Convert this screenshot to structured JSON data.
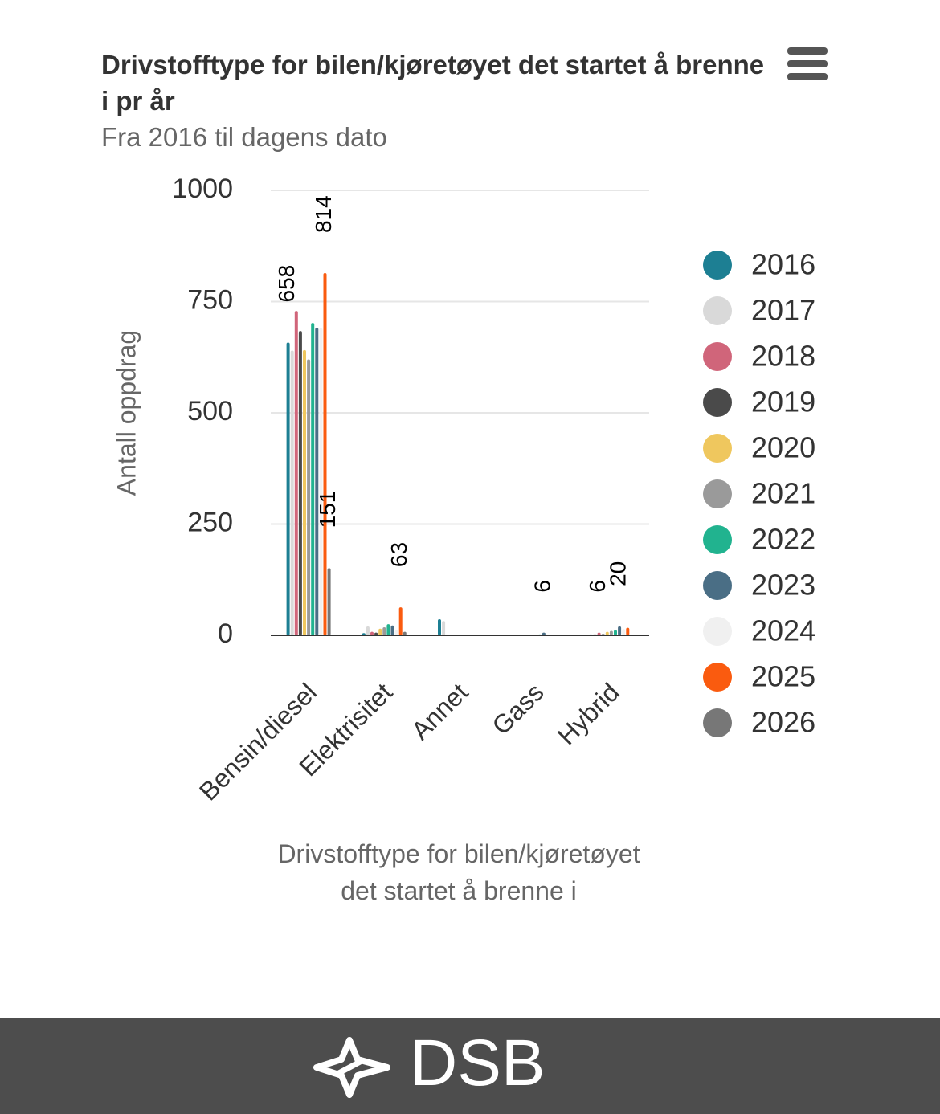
{
  "chart_data": {
    "type": "bar",
    "title": "Drivstofftype for bilen/kjøretøyet det startet å brenne i pr år",
    "subtitle": "Fra 2016 til dagens dato",
    "y_label": "Antall oppdrag",
    "x_label": "Drivstofftype for bilen/kjøretøyet det startet å brenne i",
    "categories": [
      "Bensin/diesel",
      "Elektrisitet",
      "Annet",
      "Gass",
      "Hybrid"
    ],
    "ylim": [
      0,
      1000
    ],
    "yticks": [
      0,
      250,
      500,
      750,
      1000
    ],
    "grid": true,
    "legend": "right",
    "series": [
      {
        "name": "2016",
        "color": "#1d7f93",
        "values": [
          658,
          5,
          36,
          0,
          2
        ],
        "value_labels": [
          "658",
          null,
          null,
          null,
          null
        ]
      },
      {
        "name": "2017",
        "color": "#d9d9d9",
        "values": [
          640,
          20,
          32,
          0,
          3
        ],
        "value_labels": [
          null,
          null,
          null,
          null,
          null
        ]
      },
      {
        "name": "2018",
        "color": "#d0657a",
        "values": [
          729,
          8,
          0,
          0,
          6
        ],
        "value_labels": [
          null,
          null,
          null,
          null,
          "6"
        ]
      },
      {
        "name": "2019",
        "color": "#4a4a4a",
        "values": [
          684,
          6,
          0,
          0,
          3
        ],
        "value_labels": [
          null,
          null,
          null,
          null,
          null
        ]
      },
      {
        "name": "2020",
        "color": "#efc75e",
        "values": [
          641,
          15,
          0,
          0,
          8
        ],
        "value_labels": [
          null,
          null,
          null,
          null,
          null
        ]
      },
      {
        "name": "2021",
        "color": "#9a9a9a",
        "values": [
          620,
          18,
          0,
          0,
          10
        ],
        "value_labels": [
          null,
          null,
          null,
          null,
          null
        ]
      },
      {
        "name": "2022",
        "color": "#21b38f",
        "values": [
          702,
          25,
          0,
          2,
          12
        ],
        "value_labels": [
          null,
          null,
          null,
          null,
          null
        ]
      },
      {
        "name": "2023",
        "color": "#4a6e85",
        "values": [
          691,
          22,
          0,
          6,
          20
        ],
        "value_labels": [
          null,
          null,
          null,
          "6",
          "20"
        ]
      },
      {
        "name": "2024",
        "color": "#f0f0f0",
        "values": [
          690,
          12,
          0,
          0,
          14
        ],
        "value_labels": [
          null,
          null,
          null,
          null,
          null
        ]
      },
      {
        "name": "2025",
        "color": "#fa5b0f",
        "values": [
          814,
          63,
          0,
          0,
          17
        ],
        "value_labels": [
          "814",
          "63",
          null,
          null,
          null
        ]
      },
      {
        "name": "2026",
        "color": "#777777",
        "values": [
          151,
          8,
          0,
          0,
          1
        ],
        "value_labels": [
          "151",
          null,
          null,
          null,
          null
        ]
      }
    ]
  },
  "footer": {
    "brand": "DSB"
  }
}
